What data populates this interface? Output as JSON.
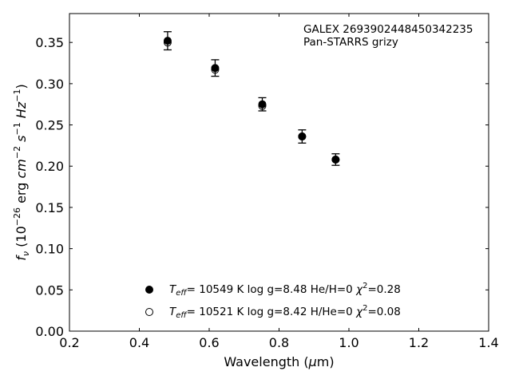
{
  "chart_data": {
    "type": "scatter",
    "x_axis": {
      "range": [
        0.2,
        1.4
      ],
      "ticks": [
        0.2,
        0.4,
        0.6,
        0.8,
        1.0,
        1.2,
        1.4
      ],
      "tick_labels": [
        "0.2",
        "0.4",
        "0.6",
        "0.8",
        "1.0",
        "1.2",
        "1.4"
      ],
      "label_text": "Wavelength (",
      "label_greek": "μ",
      "label_unit": "m)"
    },
    "y_axis": {
      "range": [
        0.0,
        0.385
      ],
      "ticks": [
        0.0,
        0.05,
        0.1,
        0.15,
        0.2,
        0.25,
        0.3,
        0.35
      ],
      "tick_labels": [
        "0.00",
        "0.05",
        "0.10",
        "0.15",
        "0.20",
        "0.25",
        "0.30",
        "0.35"
      ],
      "label_f": "f",
      "label_nu": "ν",
      "label_open": " (10",
      "label_exp26": "−26",
      "label_erg": " erg ",
      "label_cm": "cm",
      "label_exp2": "−2",
      "label_s": " s",
      "label_exp1": "−1",
      "label_hz": " Hz",
      "label_exp1b": "−1",
      "label_close": ")"
    },
    "annotation": {
      "line1": "GALEX 2693902448450342235",
      "line2": "Pan-STARRS grizy"
    },
    "series": [
      {
        "marker": "filled",
        "points": [
          {
            "x": 0.481,
            "y": 0.352,
            "err": 0.011
          },
          {
            "x": 0.617,
            "y": 0.319,
            "err": 0.01
          },
          {
            "x": 0.752,
            "y": 0.275,
            "err": 0.008
          },
          {
            "x": 0.866,
            "y": 0.236,
            "err": 0.008
          },
          {
            "x": 0.962,
            "y": 0.208,
            "err": 0.007
          }
        ]
      },
      {
        "marker": "open",
        "points": [
          {
            "x": 0.481,
            "y": 0.35,
            "err": 0.011
          },
          {
            "x": 0.617,
            "y": 0.317,
            "err": 0.01
          },
          {
            "x": 0.752,
            "y": 0.273,
            "err": 0.008
          },
          {
            "x": 0.866,
            "y": 0.236,
            "err": 0.008
          },
          {
            "x": 0.962,
            "y": 0.208,
            "err": 0.007
          }
        ]
      }
    ],
    "legend": [
      {
        "marker": "filled",
        "t": "T",
        "t_sub": "eff",
        "text": "= 10549 K  log g=8.48  He/H=0  ",
        "chi": "χ",
        "chi_sup": "2",
        "chi_val": "=0.28"
      },
      {
        "marker": "open",
        "t": "T",
        "t_sub": "eff",
        "text": "= 10521 K  log g=8.42  H/He=0  ",
        "chi": "χ",
        "chi_sup": "2",
        "chi_val": "=0.08"
      }
    ],
    "colors": {
      "marker": "#000000",
      "background": "#ffffff"
    }
  }
}
